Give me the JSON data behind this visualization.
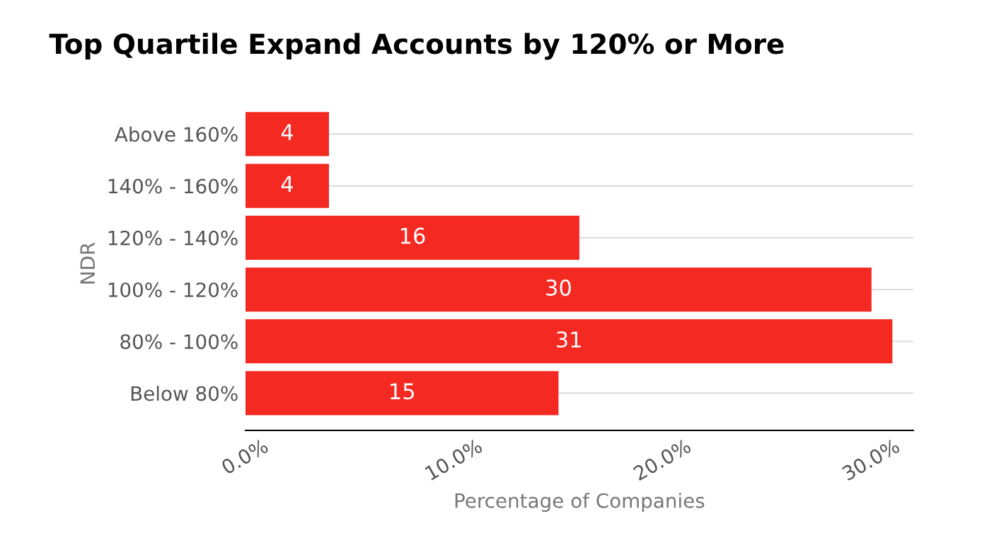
{
  "chart_data": {
    "type": "bar",
    "orientation": "horizontal",
    "title": "Top Quartile Expand Accounts by 120% or More",
    "categories": [
      "Above 160%",
      "140% - 160%",
      "120% - 140%",
      "100% - 120%",
      "80% - 100%",
      "Below 80%"
    ],
    "values": [
      4,
      4,
      16,
      30,
      31,
      15
    ],
    "color": "#f42a22",
    "data_labels": true,
    "xlim": [
      0,
      32
    ],
    "xticks": [
      {
        "value": 0,
        "label": "0.0%"
      },
      {
        "value": 10,
        "label": "10.0%"
      },
      {
        "value": 20,
        "label": "20.0%"
      },
      {
        "value": 30,
        "label": "30.0%"
      }
    ],
    "xlabel": "Percentage of Companies",
    "ylabel": "NDR",
    "grid": "y"
  }
}
